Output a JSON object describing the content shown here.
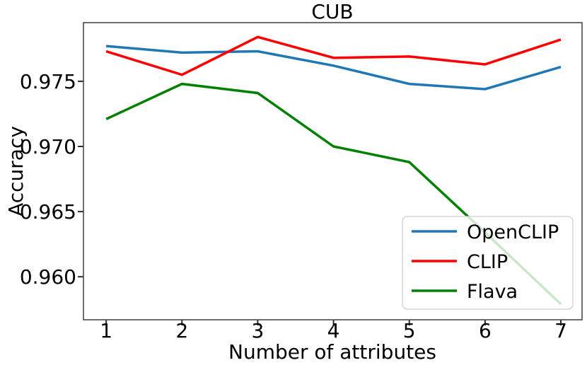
{
  "figure": {
    "title": "CUB",
    "xlabel": "Number of attributes",
    "ylabel": "Accuracy"
  },
  "chart_data": {
    "type": "line",
    "title": "CUB",
    "xlabel": "Number of attributes",
    "ylabel": "Accuracy",
    "x": [
      1,
      2,
      3,
      4,
      5,
      6,
      7
    ],
    "xtick_labels": [
      "1",
      "2",
      "3",
      "4",
      "5",
      "6",
      "7"
    ],
    "ytick_values": [
      0.96,
      0.965,
      0.97,
      0.975
    ],
    "ytick_labels": [
      "0.960",
      "0.965",
      "0.970",
      "0.975"
    ],
    "xlim": [
      0.7,
      7.28
    ],
    "ylim": [
      0.9567,
      0.9795
    ],
    "grid": false,
    "legend_position": "lower right",
    "series": [
      {
        "name": "OpenCLIP",
        "color": "#1f77b4",
        "values": [
          0.9777,
          0.9772,
          0.9773,
          0.9762,
          0.9748,
          0.9744,
          0.9761
        ]
      },
      {
        "name": "CLIP",
        "color": "#ff0000",
        "values": [
          0.9773,
          0.9755,
          0.9784,
          0.9768,
          0.9769,
          0.9763,
          0.9782
        ]
      },
      {
        "name": "Flava",
        "color": "#008000",
        "values": [
          0.9721,
          0.9748,
          0.9741,
          0.97,
          0.9688,
          0.9634,
          0.9579
        ]
      }
    ]
  }
}
